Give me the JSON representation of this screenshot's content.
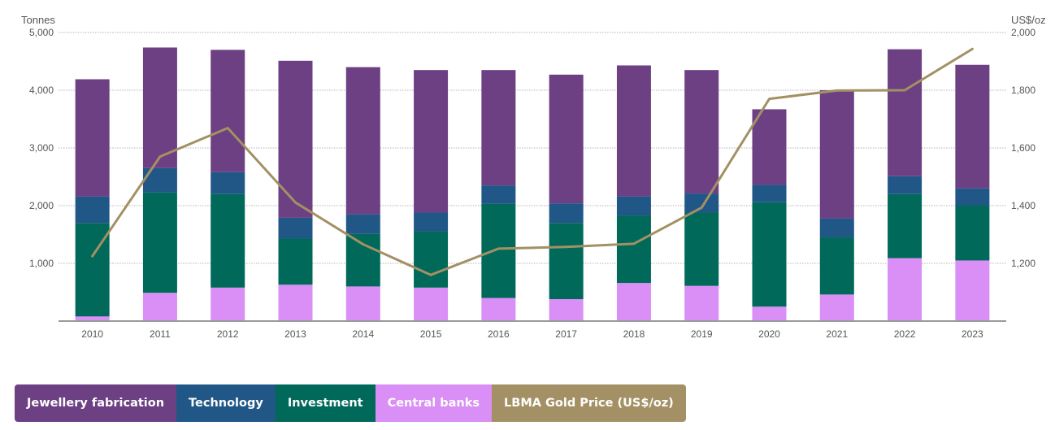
{
  "axes": {
    "left_title": "Tonnes",
    "right_title": "US$/oz"
  },
  "chart_data": {
    "type": "bar",
    "stacked": true,
    "categories": [
      "2010",
      "2011",
      "2012",
      "2013",
      "2014",
      "2015",
      "2016",
      "2017",
      "2018",
      "2019",
      "2020",
      "2021",
      "2022",
      "2023"
    ],
    "series": [
      {
        "name": "Central banks",
        "color": "#d98ff5",
        "values": [
          80,
          490,
          580,
          630,
          600,
          580,
          400,
          380,
          660,
          610,
          250,
          460,
          1090,
          1050
        ]
      },
      {
        "name": "Investment",
        "color": "#00695a",
        "values": [
          1620,
          1740,
          1620,
          800,
          910,
          970,
          1630,
          1320,
          1170,
          1270,
          1810,
          990,
          1110,
          950
        ]
      },
      {
        "name": "Technology",
        "color": "#205787",
        "values": [
          460,
          420,
          380,
          360,
          340,
          330,
          320,
          340,
          330,
          330,
          300,
          330,
          310,
          300
        ]
      },
      {
        "name": "Jewellery fabrication",
        "color": "#6c4083",
        "values": [
          2030,
          2090,
          2120,
          2720,
          2550,
          2470,
          2000,
          2230,
          2270,
          2140,
          1310,
          2220,
          2200,
          2140
        ]
      }
    ],
    "line_series": {
      "name": "LBMA Gold Price (US$/oz)",
      "color": "#a39064",
      "values": [
        1225,
        1570,
        1669,
        1411,
        1266,
        1160,
        1251,
        1257,
        1268,
        1393,
        1770,
        1799,
        1800,
        1943
      ]
    },
    "ylim_left": [
      0,
      5000
    ],
    "ylim_right": [
      1000,
      2000
    ],
    "yticks_left": [
      "1,000",
      "2,000",
      "3,000",
      "4,000",
      "5,000"
    ],
    "yticks_right": [
      "1,200",
      "1,400",
      "1,600",
      "1,800",
      "2,000"
    ],
    "grid": true,
    "legend_position": "bottom-left"
  },
  "legend": [
    {
      "label": "Jewellery fabrication",
      "color": "#6c4083"
    },
    {
      "label": "Technology",
      "color": "#205787"
    },
    {
      "label": "Investment",
      "color": "#00695a"
    },
    {
      "label": "Central banks",
      "color": "#d98ff5"
    },
    {
      "label": "LBMA Gold Price (US$/oz)",
      "color": "#a39064"
    }
  ]
}
